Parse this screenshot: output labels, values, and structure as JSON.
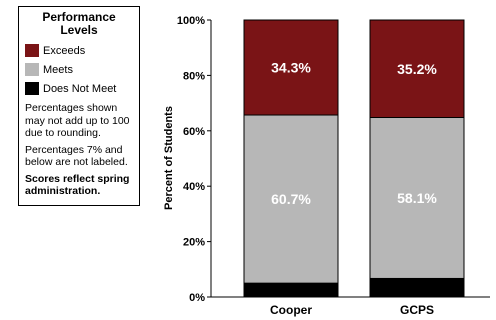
{
  "legend": {
    "title": "Performance Levels",
    "items": [
      {
        "label": "Exceeds",
        "color": "#7a1416"
      },
      {
        "label": "Meets",
        "color": "#b7b7b7"
      },
      {
        "label": "Does Not Meet",
        "color": "#000000"
      }
    ],
    "notes": [
      "Percentages shown may not add up to 100 due to rounding.",
      "Percentages 7% and below are not labeled."
    ],
    "bold_note": "Scores reflect spring administration."
  },
  "chart_data": {
    "type": "bar",
    "stacked": true,
    "categories": [
      "Cooper",
      "GCPS"
    ],
    "series": [
      {
        "name": "Does Not Meet",
        "values": [
          5.0,
          6.7
        ],
        "color": "#000000"
      },
      {
        "name": "Meets",
        "values": [
          60.7,
          58.1
        ],
        "color": "#b7b7b7"
      },
      {
        "name": "Exceeds",
        "values": [
          34.3,
          35.2
        ],
        "color": "#7a1416"
      }
    ],
    "ylabel": "Percent of Students",
    "ylim": [
      0,
      100
    ],
    "yticks": [
      "0%",
      "20%",
      "40%",
      "60%",
      "80%",
      "100%"
    ],
    "label_threshold": 7,
    "grid": false
  }
}
